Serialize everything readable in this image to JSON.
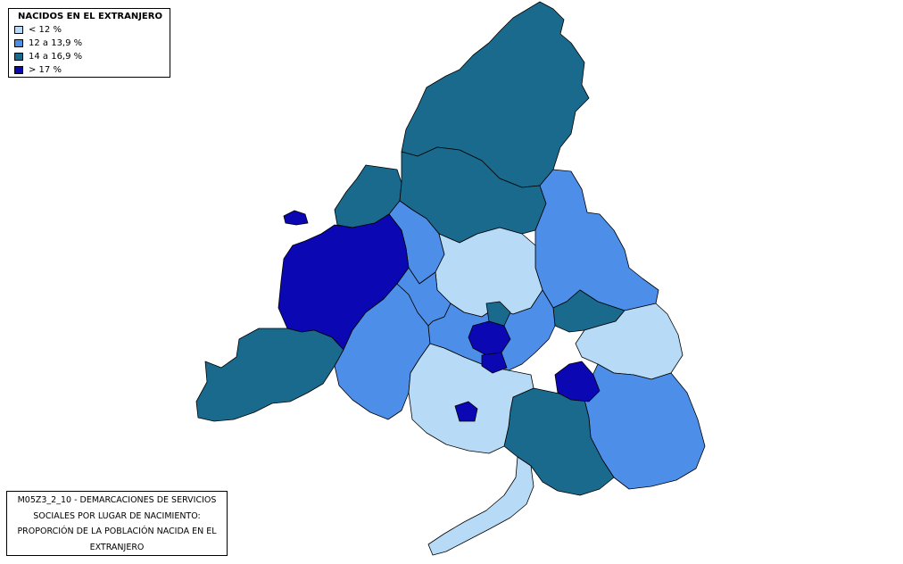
{
  "legend": {
    "title": "NACIDOS EN EL EXTRANJERO",
    "items": [
      {
        "label": "< 12 %",
        "color": "#b7dbf6",
        "class": "low"
      },
      {
        "label": "12 a 13,9 %",
        "color": "#4d8fe8",
        "class": "medium"
      },
      {
        "label": "14 a 16,9 %",
        "color": "#1a6a8e",
        "class": "high"
      },
      {
        "label": "> 17 %",
        "color": "#0a07b3",
        "class": "very-high"
      }
    ]
  },
  "caption": {
    "lines": [
      "M05Z3_2_10 - DEMARCACIONES DE SERVICIOS",
      "SOCIALES POR LUGAR DE NACIMIENTO:",
      "PROPORCIÓN DE LA POBLACIÓN NACIDA EN EL",
      "EXTRANJERO"
    ]
  },
  "colors": {
    "low": "#b7dbf6",
    "medium": "#4d8fe8",
    "high": "#1a6a8e",
    "very-high": "#0a07b3",
    "border": "#000000"
  },
  "map": {
    "region": "Comunidad de Madrid",
    "regions": [
      {
        "id": "sierra-norte",
        "class": "high"
      },
      {
        "id": "northwest-sierra",
        "class": "high"
      },
      {
        "id": "central-north",
        "class": "high"
      },
      {
        "id": "west-enclave",
        "class": "very-high"
      },
      {
        "id": "west-large",
        "class": "very-high"
      },
      {
        "id": "far-west",
        "class": "high"
      },
      {
        "id": "southwest",
        "class": "medium"
      },
      {
        "id": "west-central",
        "class": "medium"
      },
      {
        "id": "north-medium",
        "class": "medium"
      },
      {
        "id": "north-light",
        "class": "low"
      },
      {
        "id": "northeast-medium",
        "class": "medium"
      },
      {
        "id": "east-dark",
        "class": "high"
      },
      {
        "id": "east-light",
        "class": "low"
      },
      {
        "id": "southeast",
        "class": "medium"
      },
      {
        "id": "south-dark",
        "class": "high"
      },
      {
        "id": "south-light",
        "class": "low"
      },
      {
        "id": "south-tail",
        "class": "low"
      },
      {
        "id": "southeast-pocket",
        "class": "very-high"
      },
      {
        "id": "south-pocket",
        "class": "very-high"
      },
      {
        "id": "capital-core",
        "class": "very-high"
      }
    ]
  }
}
